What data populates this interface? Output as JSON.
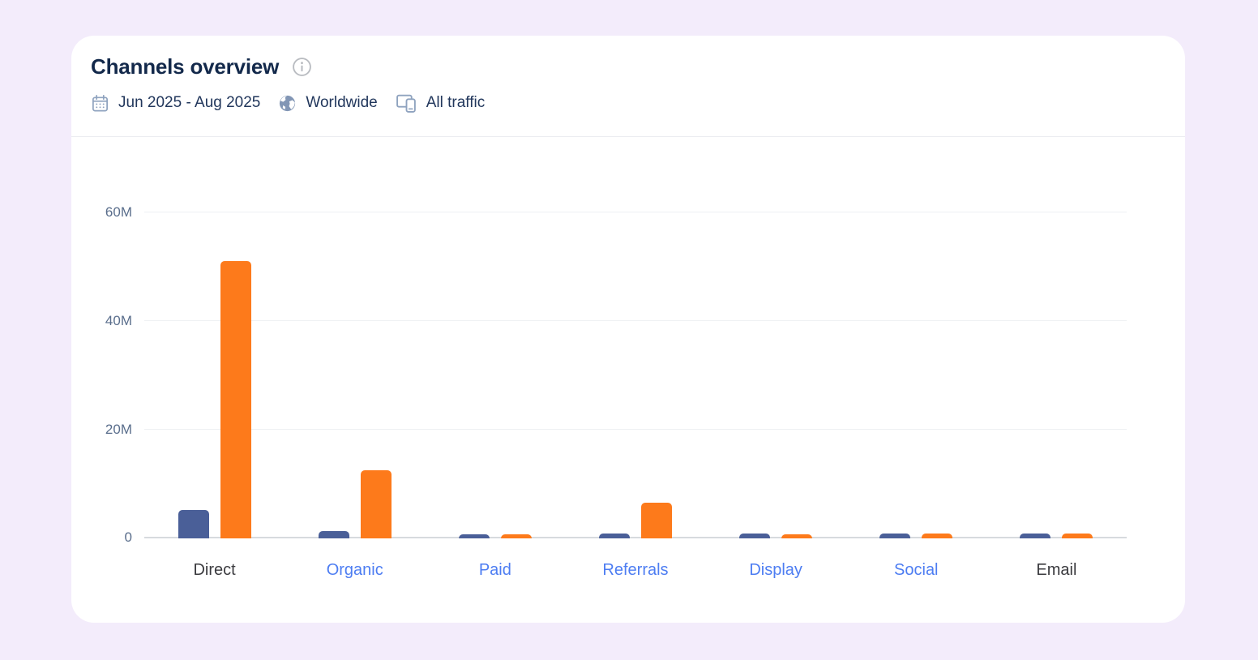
{
  "header": {
    "title": "Channels overview",
    "filters": {
      "date_range": "Jun 2025 - Aug 2025",
      "geography": "Worldwide",
      "traffic_type": "All traffic"
    }
  },
  "chart_data": {
    "type": "bar",
    "title": "Channels overview",
    "categories": [
      "Direct",
      "Organic",
      "Paid",
      "Referrals",
      "Display",
      "Social",
      "Email"
    ],
    "category_is_link": [
      false,
      true,
      true,
      true,
      true,
      true,
      false
    ],
    "series": [
      {
        "name": "navy",
        "color": "#4A5F98",
        "values_millions": [
          5.2,
          1.4,
          0.8,
          0.9,
          0.9,
          0.9,
          0.9
        ]
      },
      {
        "name": "orange",
        "color": "#FD7A1B",
        "values_millions": [
          51,
          12.5,
          0.8,
          6.5,
          0.8,
          0.9,
          0.9
        ]
      }
    ],
    "y_axis": {
      "unit": "visits (millions)",
      "range_millions": [
        0,
        60
      ],
      "ticks": [
        {
          "label": "0",
          "value": 0
        },
        {
          "label": "20M",
          "value": 20
        },
        {
          "label": "40M",
          "value": 40
        },
        {
          "label": "60M",
          "value": 60
        }
      ]
    },
    "grid": true,
    "legend": "none"
  },
  "colors": {
    "page_background": "#F3ECFB",
    "card_background": "#FFFFFF",
    "title_text": "#13294B",
    "meta_text": "#22375C",
    "axis_label": "#5A6E8C",
    "category_link": "#4D7DF2",
    "category_plain": "#3B3B3F",
    "bar_navy": "#4A5F98",
    "bar_orange": "#FD7A1B",
    "gridline": "#EEF0F3",
    "baseline": "#D7DADE"
  }
}
